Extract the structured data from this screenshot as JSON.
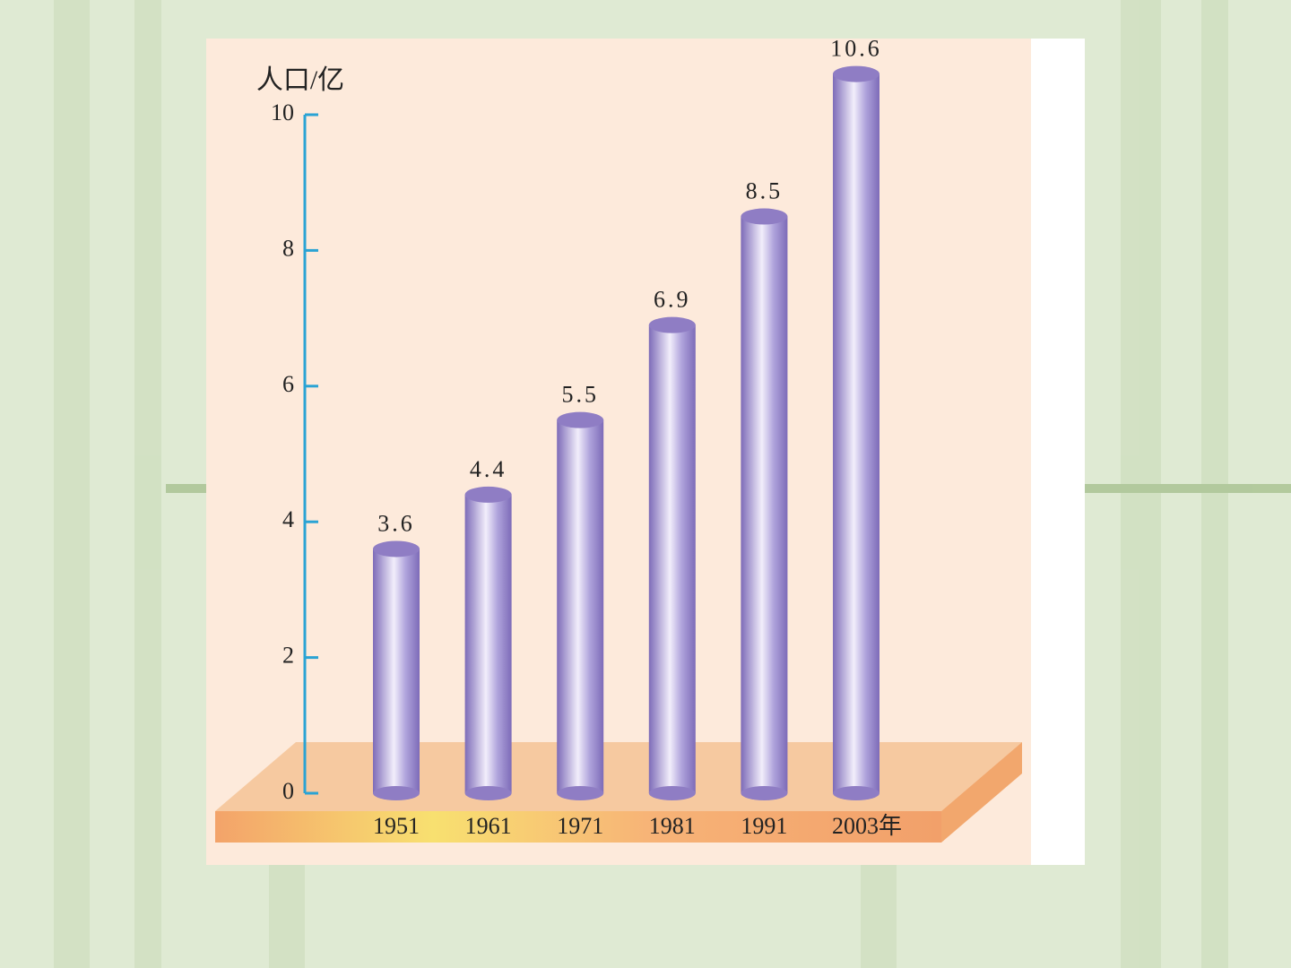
{
  "chart_data": {
    "type": "bar",
    "y_label": "人口/亿",
    "categories": [
      "1951",
      "1961",
      "1971",
      "1981",
      "1991",
      "2003年"
    ],
    "values": [
      3.6,
      4.4,
      5.5,
      6.9,
      8.5,
      10.6
    ],
    "color": "#8f7dc4",
    "ylim": [
      0,
      10
    ],
    "yticks": [
      0,
      2,
      4,
      6,
      8,
      10
    ]
  }
}
